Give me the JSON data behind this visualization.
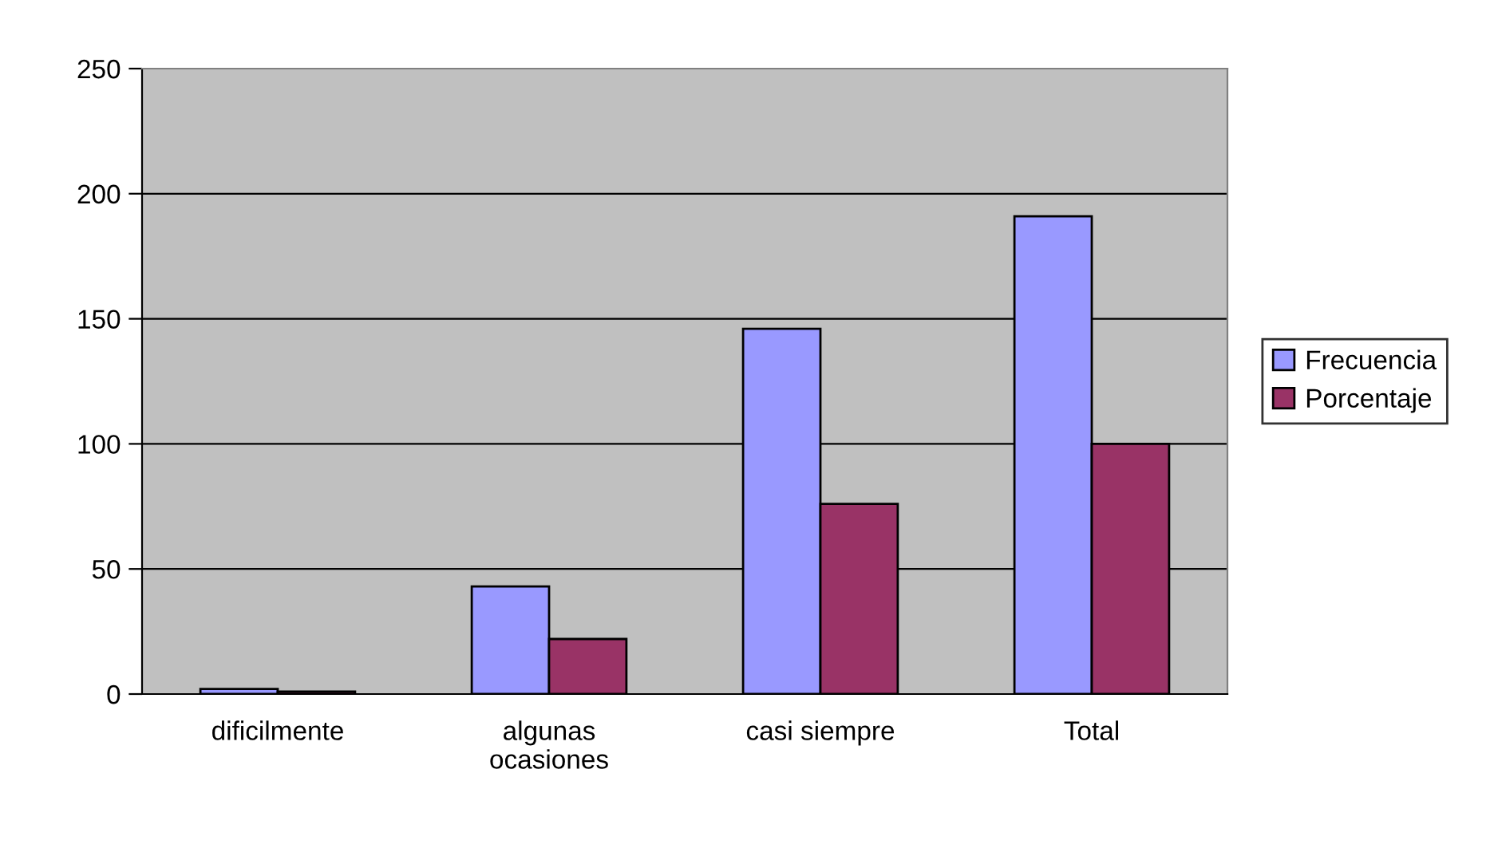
{
  "chart_data": {
    "type": "bar",
    "categories": [
      "dificilmente",
      "algunas\nocasiones",
      "casi siempre",
      "Total"
    ],
    "series": [
      {
        "name": "Frecuencia",
        "color": "#9999ff",
        "values": [
          2,
          43,
          146,
          191
        ]
      },
      {
        "name": "Porcentaje",
        "color": "#993366",
        "values": [
          1,
          22,
          76,
          100
        ]
      }
    ],
    "ylim": [
      0,
      250
    ],
    "yticks": [
      0,
      50,
      100,
      150,
      200,
      250
    ],
    "grid": "y",
    "legend": "right"
  }
}
